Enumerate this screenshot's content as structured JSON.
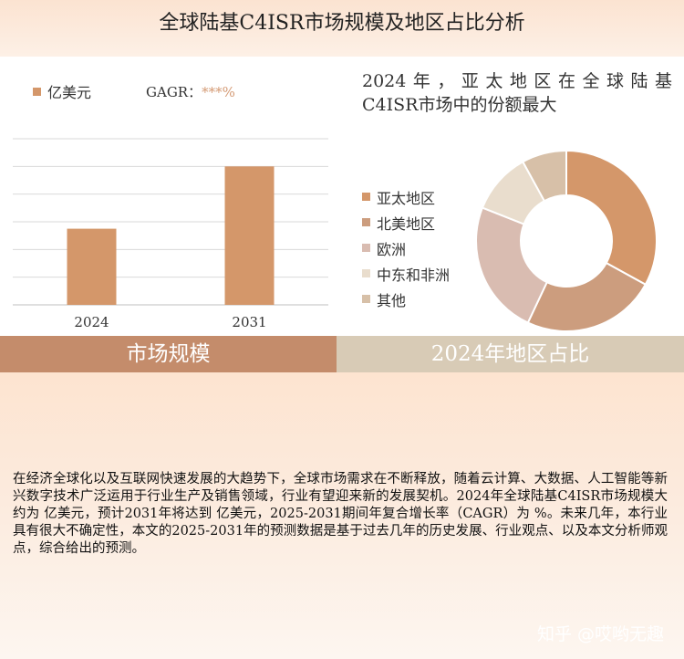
{
  "header": {
    "title": "全球陆基C4ISR市场规模及地区占比分析"
  },
  "left_panel": {
    "legend_label": "亿美元",
    "cagr_label": "GAGR：",
    "cagr_value": "***%"
  },
  "right_panel": {
    "title_line1": "2024年，亚太地区在全球陆基",
    "title_line2": "C4ISR市场中的份额最大"
  },
  "bands": {
    "left": "市场规模",
    "right": "2024年地区占比"
  },
  "paragraph": "在经济全球化以及互联网快速发展的大趋势下，全球市场需求在不断释放，随着云计算、大数据、人工智能等新兴数字技术广泛运用于行业生产及销售领域，行业有望迎来新的发展契机。2024年全球陆基C4ISR市场规模大约为 亿美元，预计2031年将达到 亿美元，2025-2031期间年复合增长率（CAGR）为 %。未来几年，本行业具有很大不确定性，本文的2025-2031年的预测数据是基于过去几年的历史发展、行业观点、以及本文分析师观点，综合给出的预测。",
  "watermark": "知乎 @哎哟无趣",
  "colors": {
    "bar": "#d4976a",
    "band_left": "#c48c6b",
    "band_right": "#d8cbb6",
    "gridline": "#d9d9d9"
  },
  "chart_data": [
    {
      "type": "bar",
      "categories": [
        "2024",
        "2031"
      ],
      "series": [
        {
          "name": "亿美元",
          "values": [
            2.75,
            5.0
          ]
        }
      ],
      "ylim": [
        0,
        6
      ],
      "grid": true,
      "legend": "top-left"
    },
    {
      "type": "pie",
      "donut": true,
      "labels": [
        "亚太地区",
        "北美地区",
        "欧洲",
        "中东和非洲",
        "其他"
      ],
      "values": [
        33,
        24,
        24,
        11,
        8
      ],
      "colors": [
        "#d4976a",
        "#cc9d7e",
        "#d9bcb1",
        "#e9ddcd",
        "#d7c0a8"
      ],
      "legend": "left"
    }
  ]
}
